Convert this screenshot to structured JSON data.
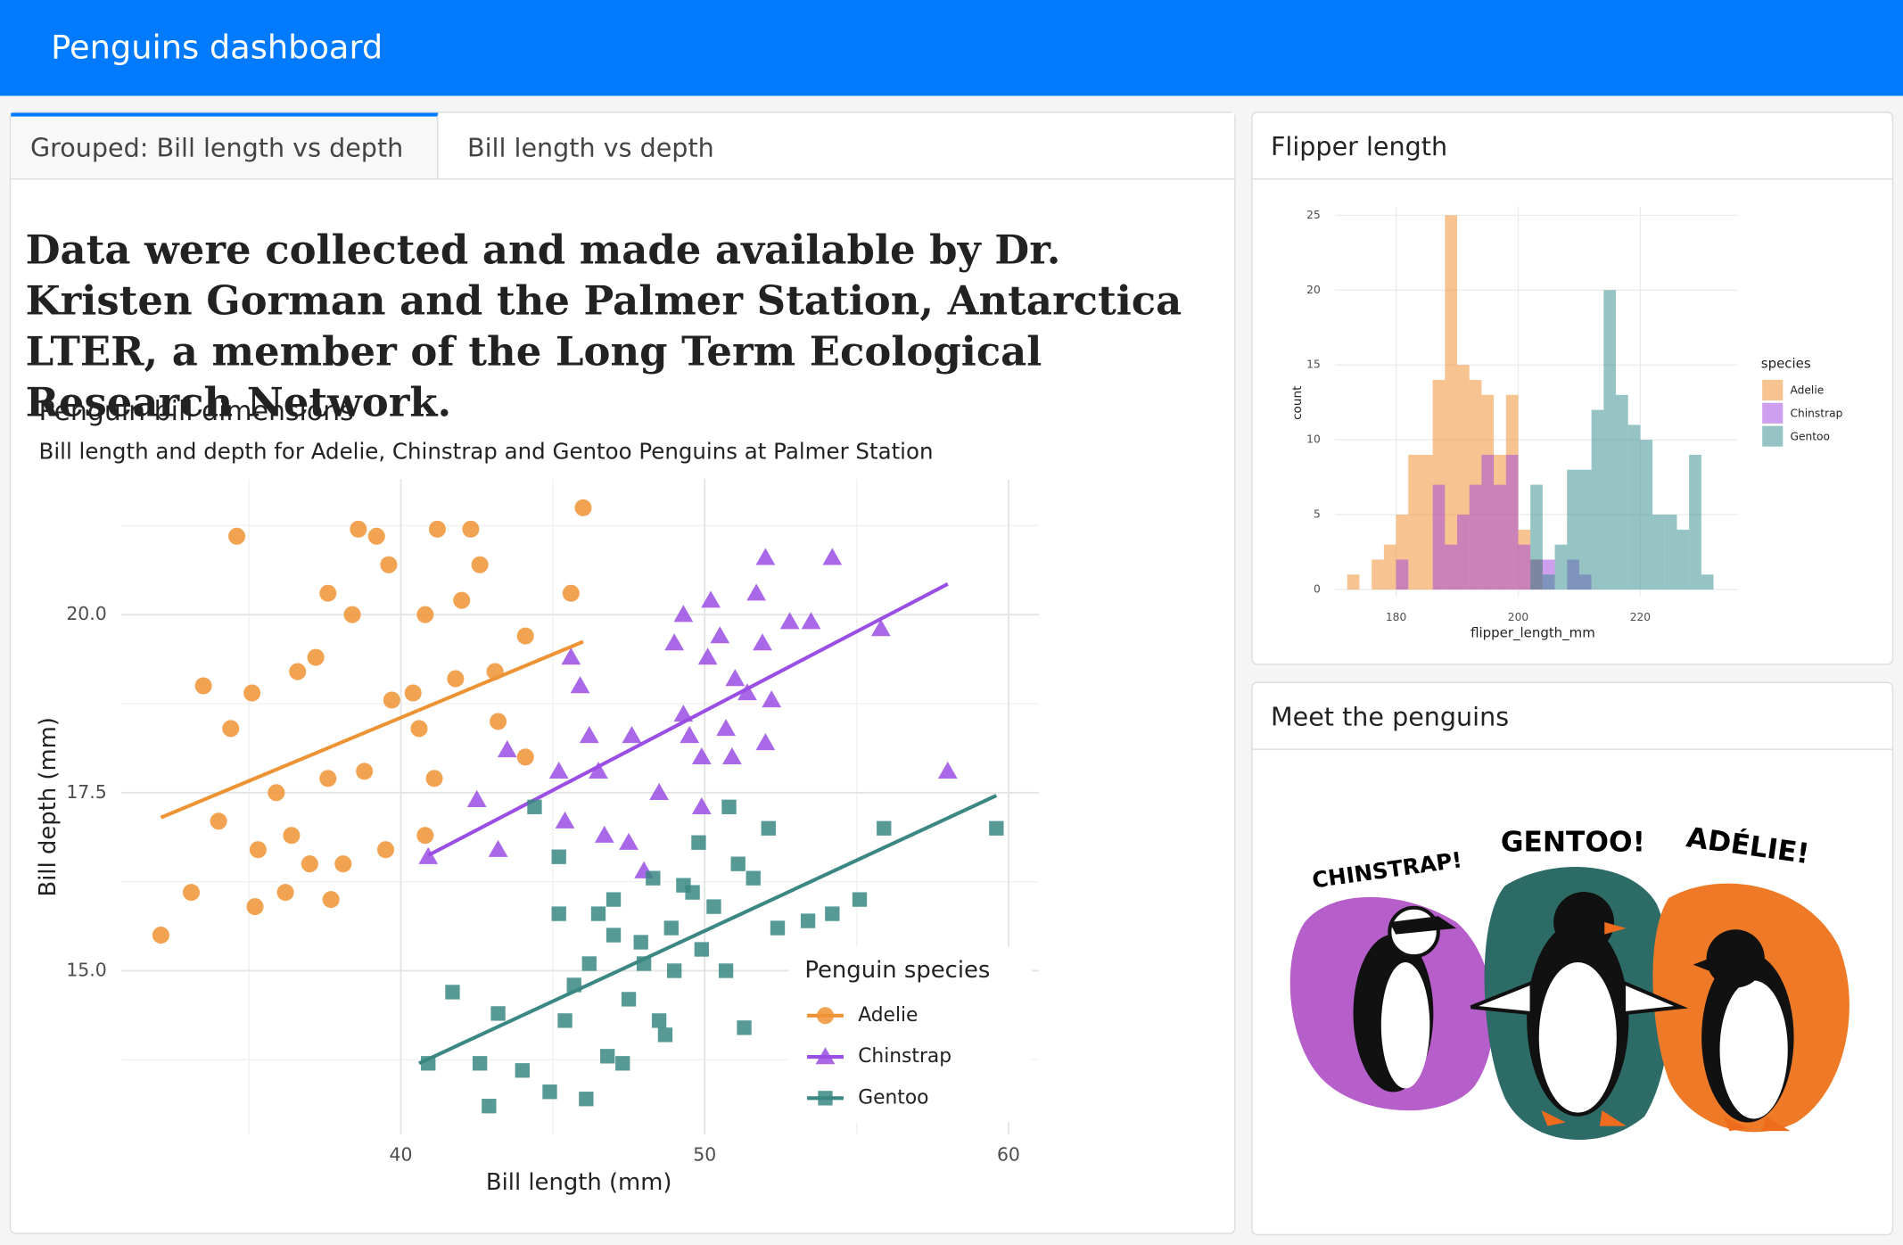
{
  "header": {
    "title": "Penguins dashboard"
  },
  "tabs": [
    "Grouped: Bill length vs depth",
    "Bill length vs depth"
  ],
  "description": "Data were collected and made available by Dr. Kristen Gorman and the Palmer Station, Antarctica LTER, a member of the Long Term Ecological Research Network.",
  "scatter": {
    "type": "scatter",
    "title": "Penguin bill dimensions",
    "subtitle": "Bill length and depth for Adelie, Chinstrap and Gentoo Penguins at Palmer Station",
    "x_label": "Bill length (mm)",
    "y_label": "Bill depth (mm)",
    "xlim": [
      30.8,
      61.0
    ],
    "ylim": [
      12.7,
      21.9
    ],
    "xticks": [
      40,
      50,
      60
    ],
    "yticks": [
      {
        "value": 15,
        "label": "15.0"
      },
      {
        "value": 17.5,
        "label": "17.5"
      },
      {
        "value": 20,
        "label": "20.0"
      }
    ],
    "x_minor_ticks": [
      35,
      45,
      55
    ],
    "y_minor_ticks": [
      13.75,
      16.25,
      18.75,
      21.25
    ],
    "grid": true,
    "legend_title": "Penguin species",
    "series": [
      {
        "name": "Adelie",
        "color": "#ee9334",
        "marker": "circle",
        "x": [
          32.1,
          33.1,
          34.6,
          33.5,
          34.0,
          35.1,
          35.2,
          36.2,
          37.7,
          38.6,
          39.2,
          39.6,
          41.2,
          42.3,
          46.0,
          45.6,
          44.1,
          43.1,
          44.1,
          40.6,
          39.5,
          38.1,
          37.0,
          35.9,
          34.4,
          36.6,
          37.2,
          38.4,
          37.6,
          40.8,
          42.0,
          42.6,
          39.7,
          40.4,
          38.8,
          35.3,
          36.4,
          37.6,
          41.1,
          40.8,
          43.2,
          41.8
        ],
        "y": [
          15.5,
          16.1,
          21.1,
          19.0,
          17.1,
          18.9,
          15.9,
          16.1,
          16.0,
          21.2,
          21.1,
          20.7,
          21.2,
          21.2,
          21.5,
          20.3,
          19.7,
          19.2,
          18.0,
          18.4,
          16.7,
          16.5,
          16.5,
          17.5,
          18.4,
          19.2,
          19.4,
          20.0,
          20.3,
          20.0,
          20.2,
          20.7,
          18.8,
          18.9,
          17.8,
          16.7,
          16.9,
          17.7,
          17.7,
          16.9,
          18.5,
          19.1
        ],
        "fit": {
          "x": [
            32.1,
            46.0
          ],
          "y": [
            17.15,
            19.62
          ]
        }
      },
      {
        "name": "Chinstrap",
        "color": "#9a4ee3",
        "marker": "triangle",
        "x": [
          40.9,
          42.5,
          43.2,
          43.5,
          45.2,
          45.4,
          45.6,
          45.9,
          46.2,
          46.5,
          46.7,
          47.5,
          47.6,
          48.0,
          48.5,
          49.0,
          49.3,
          49.5,
          49.9,
          50.1,
          50.2,
          50.5,
          50.7,
          51.0,
          51.4,
          51.7,
          51.9,
          52.0,
          52.0,
          52.2,
          52.8,
          53.5,
          54.2,
          55.8,
          58.0,
          50.9,
          49.9,
          49.3
        ],
        "y": [
          16.6,
          17.4,
          16.7,
          18.1,
          17.8,
          17.1,
          19.4,
          19.0,
          18.3,
          17.8,
          16.9,
          16.8,
          18.3,
          16.4,
          17.5,
          19.6,
          20.0,
          18.3,
          17.3,
          19.4,
          20.2,
          19.7,
          18.4,
          19.1,
          18.9,
          20.3,
          19.6,
          20.8,
          18.2,
          18.8,
          19.9,
          19.9,
          20.8,
          19.8,
          17.8,
          18.0,
          18.0,
          18.6
        ],
        "fit": {
          "x": [
            40.9,
            58.0
          ],
          "y": [
            16.62,
            20.43
          ]
        }
      },
      {
        "name": "Gentoo",
        "color": "#3a8783",
        "marker": "square",
        "x": [
          40.9,
          41.7,
          42.6,
          42.9,
          43.2,
          44.0,
          44.4,
          44.9,
          45.2,
          45.2,
          45.4,
          45.7,
          46.1,
          46.2,
          46.5,
          46.8,
          47.0,
          47.3,
          47.5,
          48.0,
          48.3,
          48.5,
          48.7,
          48.9,
          49.0,
          49.3,
          49.6,
          49.8,
          49.9,
          50.3,
          50.7,
          50.8,
          51.1,
          51.3,
          51.6,
          52.1,
          52.4,
          53.4,
          54.2,
          55.1,
          55.9,
          59.6,
          47.0,
          47.9
        ],
        "y": [
          13.7,
          14.7,
          13.7,
          13.1,
          14.4,
          13.6,
          17.3,
          13.3,
          16.6,
          15.8,
          14.3,
          14.8,
          13.2,
          15.1,
          15.8,
          13.8,
          15.5,
          13.7,
          14.6,
          15.1,
          16.3,
          14.3,
          14.1,
          15.6,
          15.0,
          16.2,
          16.1,
          16.8,
          15.3,
          15.9,
          15.0,
          17.3,
          16.5,
          14.2,
          16.3,
          17.0,
          15.6,
          15.7,
          15.8,
          16.0,
          17.0,
          17.0,
          16.0,
          15.4
        ],
        "fit": {
          "x": [
            40.6,
            59.6
          ],
          "y": [
            13.7,
            17.46
          ]
        }
      }
    ]
  },
  "histogram": {
    "type": "histogram",
    "title": "Flipper length",
    "x_label": "flipper_length_mm",
    "y_label": "count",
    "bins": [
      172,
      174,
      176,
      178,
      180,
      182,
      184,
      186,
      188,
      190,
      192,
      194,
      196,
      198,
      200,
      202,
      204,
      206,
      208,
      210,
      212,
      214,
      216,
      218,
      220,
      222,
      224,
      226,
      228,
      230,
      232
    ],
    "xlim": [
      170,
      236
    ],
    "ylim": [
      -0.5,
      25.6
    ],
    "xticks": [
      180,
      200,
      220
    ],
    "yticks": [
      0,
      5,
      10,
      15,
      20,
      25
    ],
    "grid": true,
    "legend_title": "species",
    "opacity": 0.5,
    "series": [
      {
        "name": "Adelie",
        "color": "#f08a24",
        "values": [
          1,
          0,
          2,
          3,
          5,
          9,
          9,
          14,
          25,
          15,
          14,
          13,
          9,
          13,
          4,
          2,
          0,
          0,
          0,
          0,
          0,
          0,
          0,
          0,
          0,
          0,
          0,
          0,
          0,
          0
        ]
      },
      {
        "name": "Chinstrap",
        "color": "#a040e0",
        "values": [
          0,
          0,
          0,
          0,
          2,
          0,
          0,
          7,
          3,
          5,
          7,
          9,
          7,
          9,
          3,
          2,
          2,
          0,
          2,
          1,
          0,
          0,
          0,
          0,
          0,
          0,
          0,
          0,
          0,
          0
        ]
      },
      {
        "name": "Gentoo",
        "color": "#2e8a8a",
        "values": [
          0,
          0,
          0,
          0,
          0,
          0,
          0,
          0,
          0,
          0,
          0,
          0,
          0,
          0,
          0,
          7,
          1,
          3,
          8,
          8,
          12,
          20,
          13,
          11,
          10,
          5,
          5,
          4,
          9,
          1
        ]
      }
    ]
  },
  "penguins": {
    "title": "Meet the penguins",
    "labels": [
      "CHINSTRAP!",
      "GENTOO!",
      "ADÉLIE!"
    ]
  }
}
